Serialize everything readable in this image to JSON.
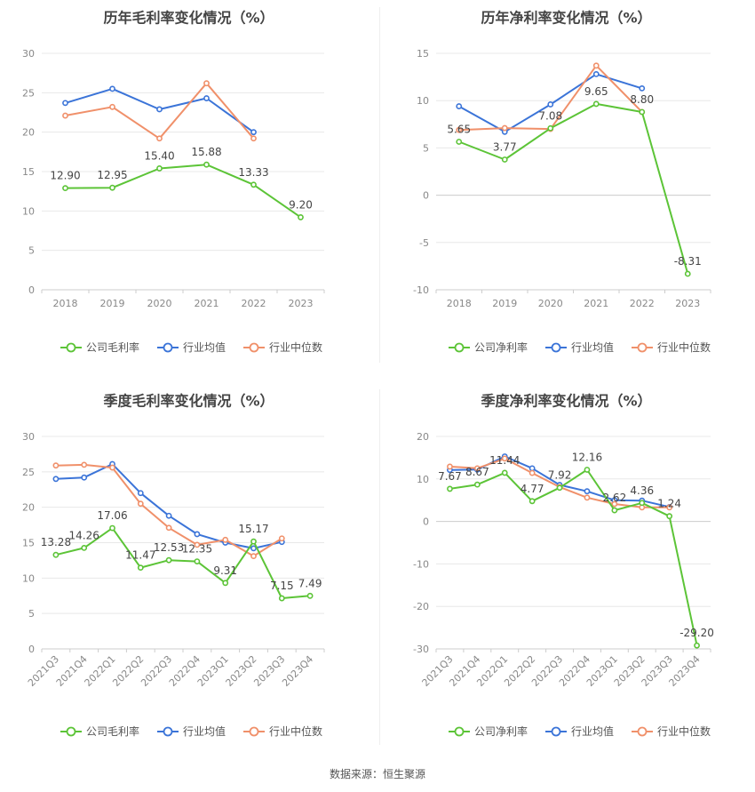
{
  "colors": {
    "company": "#5cc437",
    "industry_avg": "#3b74d8",
    "industry_median": "#f0906a"
  },
  "source": "数据来源：恒生聚源",
  "chart_data": [
    {
      "type": "line",
      "title": "历年毛利率变化情况（%）",
      "categories": [
        "2018",
        "2019",
        "2020",
        "2021",
        "2022",
        "2023"
      ],
      "ylim": [
        0,
        30
      ],
      "yticks": [
        0,
        5,
        10,
        15,
        20,
        25,
        30
      ],
      "grid": true,
      "legend_position": "bottom",
      "x_label_rotate": false,
      "series": [
        {
          "name": "公司毛利率",
          "color": "#5cc437",
          "labeled": true,
          "values": [
            12.9,
            12.95,
            15.4,
            15.88,
            13.33,
            9.2
          ],
          "labels": [
            "12.90",
            "12.95",
            "15.40",
            "15.88",
            "13.33",
            "9.20"
          ]
        },
        {
          "name": "行业均值",
          "color": "#3b74d8",
          "labeled": false,
          "values": [
            23.7,
            25.5,
            22.9,
            24.3,
            20.0,
            null
          ]
        },
        {
          "name": "行业中位数",
          "color": "#f0906a",
          "labeled": false,
          "values": [
            22.1,
            23.2,
            19.2,
            26.2,
            19.2,
            null
          ]
        }
      ]
    },
    {
      "type": "line",
      "title": "历年净利率变化情况（%）",
      "categories": [
        "2018",
        "2019",
        "2020",
        "2021",
        "2022",
        "2023"
      ],
      "ylim": [
        -10,
        15
      ],
      "yticks": [
        -10,
        -5,
        0,
        5,
        10,
        15
      ],
      "grid": true,
      "legend_position": "bottom",
      "x_label_rotate": false,
      "series": [
        {
          "name": "公司净利率",
          "color": "#5cc437",
          "labeled": true,
          "values": [
            5.65,
            3.77,
            7.08,
            9.65,
            8.8,
            -8.31
          ],
          "labels": [
            "5.65",
            "3.77",
            "7.08",
            "9.65",
            "8.80",
            "-8.31"
          ]
        },
        {
          "name": "行业均值",
          "color": "#3b74d8",
          "labeled": false,
          "values": [
            9.4,
            6.7,
            9.6,
            12.8,
            11.3,
            null
          ]
        },
        {
          "name": "行业中位数",
          "color": "#f0906a",
          "labeled": false,
          "values": [
            6.9,
            7.1,
            7.0,
            13.7,
            8.8,
            null
          ]
        }
      ]
    },
    {
      "type": "line",
      "title": "季度毛利率变化情况（%）",
      "categories": [
        "2021Q3",
        "2021Q4",
        "2022Q1",
        "2022Q2",
        "2022Q3",
        "2022Q4",
        "2023Q1",
        "2023Q2",
        "2023Q3",
        "2023Q4"
      ],
      "ylim": [
        0,
        30
      ],
      "yticks": [
        0,
        5,
        10,
        15,
        20,
        25,
        30
      ],
      "grid": true,
      "legend_position": "bottom",
      "x_label_rotate": true,
      "series": [
        {
          "name": "公司毛利率",
          "color": "#5cc437",
          "labeled": true,
          "values": [
            13.28,
            14.26,
            17.06,
            11.47,
            12.53,
            12.35,
            9.31,
            15.17,
            7.15,
            7.49
          ],
          "labels": [
            "13.28",
            "14.26",
            "17.06",
            "11.47",
            "12.53",
            "12.35",
            "9.31",
            "15.17",
            "7.15",
            "7.49"
          ]
        },
        {
          "name": "行业均值",
          "color": "#3b74d8",
          "labeled": false,
          "values": [
            24.0,
            24.2,
            26.1,
            22.0,
            18.8,
            16.2,
            15.0,
            14.2,
            15.1,
            null
          ]
        },
        {
          "name": "行业中位数",
          "color": "#f0906a",
          "labeled": false,
          "values": [
            25.9,
            26.0,
            25.6,
            20.5,
            17.1,
            14.7,
            15.4,
            13.1,
            15.6,
            null
          ]
        }
      ]
    },
    {
      "type": "line",
      "title": "季度净利率变化情况（%）",
      "categories": [
        "2021Q3",
        "2021Q4",
        "2022Q1",
        "2022Q2",
        "2022Q3",
        "2022Q4",
        "2023Q1",
        "2023Q2",
        "2023Q3",
        "2023Q4"
      ],
      "ylim": [
        -30,
        20
      ],
      "yticks": [
        -30,
        -20,
        -10,
        0,
        10,
        20
      ],
      "grid": true,
      "legend_position": "bottom",
      "x_label_rotate": true,
      "series": [
        {
          "name": "公司净利率",
          "color": "#5cc437",
          "labeled": true,
          "values": [
            7.67,
            8.67,
            11.44,
            4.77,
            7.92,
            12.16,
            2.62,
            4.36,
            1.24,
            -29.2
          ],
          "labels": [
            "7.67",
            "8.67",
            "11.44",
            "4.77",
            "7.92",
            "12.16",
            "2.62",
            "4.36",
            "1.24",
            "-29.20"
          ]
        },
        {
          "name": "行业均值",
          "color": "#3b74d8",
          "labeled": false,
          "values": [
            12.1,
            12.2,
            15.3,
            12.5,
            8.6,
            7.1,
            5.0,
            4.9,
            3.4,
            null
          ]
        },
        {
          "name": "行业中位数",
          "color": "#f0906a",
          "labeled": false,
          "values": [
            12.9,
            12.5,
            14.8,
            11.4,
            8.1,
            5.6,
            4.1,
            3.3,
            3.3,
            null
          ]
        }
      ]
    }
  ]
}
